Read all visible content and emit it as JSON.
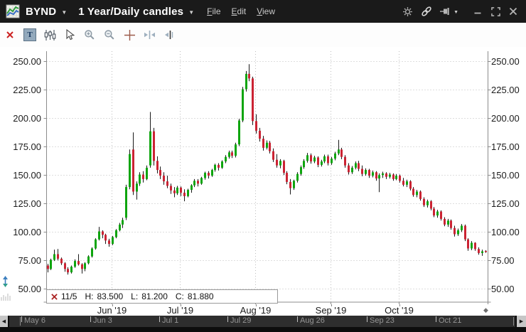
{
  "window": {
    "symbol": "BYND",
    "period": "1 Year/Daily candles",
    "menus": {
      "file": "File",
      "edit": "Edit",
      "view": "View"
    }
  },
  "statusbar": {
    "date": "11/5",
    "h_label": "H:",
    "h_value": "83.500",
    "l_label": "L:",
    "l_value": "81.200",
    "c_label": "C:",
    "c_value": "81.880"
  },
  "toolbar": {
    "text_tool_glyph": "T",
    "tools": [
      "delete",
      "text",
      "chart-style",
      "cursor",
      "zoom-in",
      "zoom-out",
      "crosshair",
      "expand-horizontal",
      "snap-bar"
    ]
  },
  "icons": {
    "chevron-down": "▼",
    "scroll-left": "◀",
    "scroll-right": "▶",
    "axis-end-marker": "◆"
  },
  "chart_data": {
    "type": "candlestick",
    "title": "BYND 1 Year/Daily candles",
    "y_ticks": [
      250,
      225,
      200,
      175,
      150,
      125,
      100,
      75,
      50
    ],
    "ylim": [
      50,
      250
    ],
    "grid": "dashed",
    "months": [
      {
        "label": "Jun '19",
        "index": 19
      },
      {
        "label": "Jul '19",
        "index": 39
      },
      {
        "label": "Aug '19",
        "index": 61
      },
      {
        "label": "Sep '19",
        "index": 83
      },
      {
        "label": "Oct '19",
        "index": 103
      }
    ],
    "scrollbar_dates": [
      {
        "label": "May 6",
        "x": 30
      },
      {
        "label": "Jun 3",
        "x": 127
      },
      {
        "label": "Jul 1",
        "x": 224
      },
      {
        "label": "Jul 29",
        "x": 320
      },
      {
        "label": "Aug 26",
        "x": 418
      },
      {
        "label": "Sep 23",
        "x": 516
      },
      {
        "label": "Oct 21",
        "x": 613
      }
    ],
    "last_quote": {
      "date": "11/5",
      "high": 83.5,
      "low": 81.2,
      "close": 81.88
    },
    "colors": {
      "up": "#0ea50e",
      "down": "#cb2333",
      "wick": "#1a1a1a",
      "grid": "#bdbdbd",
      "axis": "#8c8c8c",
      "accent_red": "#cc2222"
    },
    "candles": [
      [
        70,
        71.5,
        64,
        67
      ],
      [
        67,
        76,
        66,
        75
      ],
      [
        75,
        84,
        74,
        80
      ],
      [
        80,
        84.5,
        74.5,
        76
      ],
      [
        76,
        77,
        70.5,
        72
      ],
      [
        72,
        73,
        64.5,
        67
      ],
      [
        67,
        68.5,
        62,
        64
      ],
      [
        64,
        70,
        63,
        69
      ],
      [
        69,
        75.5,
        68,
        74
      ],
      [
        74,
        80,
        70,
        71
      ],
      [
        71,
        72,
        63,
        67
      ],
      [
        67,
        73,
        65,
        72
      ],
      [
        72,
        79,
        71,
        78
      ],
      [
        78,
        86,
        77,
        85
      ],
      [
        85,
        94,
        84,
        93
      ],
      [
        93,
        104,
        92,
        100
      ],
      [
        100,
        101,
        94,
        97
      ],
      [
        97,
        98,
        89,
        92
      ],
      [
        92,
        93.5,
        86.5,
        89
      ],
      [
        89,
        96,
        88,
        95
      ],
      [
        95,
        102,
        94,
        101
      ],
      [
        101,
        107.5,
        100,
        106
      ],
      [
        106,
        112,
        103,
        110
      ],
      [
        112,
        141,
        110,
        139
      ],
      [
        139,
        172,
        137,
        168
      ],
      [
        172,
        187,
        132,
        135
      ],
      [
        135,
        144,
        128,
        142
      ],
      [
        142,
        152,
        140,
        150
      ],
      [
        150,
        153,
        143,
        146
      ],
      [
        146,
        158,
        145,
        156
      ],
      [
        158,
        205,
        156,
        188
      ],
      [
        188,
        191,
        158,
        162
      ],
      [
        162,
        166,
        151,
        154
      ],
      [
        154,
        157,
        146,
        149
      ],
      [
        149,
        152,
        141,
        144
      ],
      [
        144,
        149,
        138,
        140
      ],
      [
        140,
        142,
        133,
        136
      ],
      [
        136,
        139,
        130,
        133.5
      ],
      [
        133.5,
        140,
        132,
        138.5
      ],
      [
        138.5,
        139.5,
        131,
        134
      ],
      [
        134,
        137,
        126.5,
        131
      ],
      [
        131,
        137.5,
        130,
        136.5
      ],
      [
        136.5,
        141.5,
        134,
        140.5
      ],
      [
        140.5,
        146,
        139,
        144.5
      ],
      [
        144.5,
        146,
        139.5,
        142
      ],
      [
        142,
        148,
        141,
        147
      ],
      [
        147,
        152.5,
        145.5,
        151.5
      ],
      [
        151.5,
        153,
        146.5,
        149
      ],
      [
        149,
        155,
        148,
        154
      ],
      [
        154,
        159.5,
        152.5,
        158.5
      ],
      [
        158.5,
        160,
        153.5,
        156
      ],
      [
        156,
        162.5,
        155,
        161.5
      ],
      [
        161.5,
        167,
        160,
        165.5
      ],
      [
        165.5,
        171,
        164,
        169.5
      ],
      [
        169.5,
        171,
        164.5,
        166.5
      ],
      [
        166.5,
        178,
        165,
        176.5
      ],
      [
        176.5,
        199,
        175,
        197.5
      ],
      [
        197.5,
        227,
        196,
        225
      ],
      [
        225,
        241,
        223,
        238.5
      ],
      [
        238.5,
        247,
        232,
        234.5
      ],
      [
        234.5,
        236,
        193.5,
        197
      ],
      [
        197,
        203,
        186,
        188.5
      ],
      [
        188.5,
        191,
        179,
        181.5
      ],
      [
        181.5,
        184,
        171,
        173.5
      ],
      [
        173.5,
        180,
        172,
        178
      ],
      [
        178,
        179.5,
        168.5,
        170.5
      ],
      [
        170.5,
        173,
        161,
        163
      ],
      [
        163,
        168,
        156,
        158
      ],
      [
        158,
        163.5,
        155.5,
        162
      ],
      [
        162,
        163,
        149.5,
        151.5
      ],
      [
        151.5,
        153,
        141.5,
        143.5
      ],
      [
        143.5,
        146,
        132.5,
        138
      ],
      [
        138,
        145.5,
        136.5,
        144.5
      ],
      [
        144.5,
        152,
        143,
        150.5
      ],
      [
        150.5,
        158,
        149,
        156.5
      ],
      [
        156.5,
        163.5,
        155,
        162
      ],
      [
        162,
        169,
        160.5,
        167
      ],
      [
        167,
        168.5,
        159.5,
        161.5
      ],
      [
        161.5,
        166.5,
        160,
        165
      ],
      [
        165,
        166,
        156.5,
        158.5
      ],
      [
        158.5,
        163,
        157,
        161.5
      ],
      [
        161.5,
        167.5,
        160,
        166
      ],
      [
        166,
        167.5,
        158,
        160
      ],
      [
        160,
        165.5,
        158.5,
        164
      ],
      [
        164,
        170,
        162.5,
        168.5
      ],
      [
        168.5,
        180.5,
        167,
        172
      ],
      [
        172,
        173.5,
        163.5,
        165.5
      ],
      [
        165.5,
        167,
        156,
        158
      ],
      [
        158,
        160,
        150,
        152
      ],
      [
        152,
        157.5,
        150.5,
        156
      ],
      [
        156,
        161.5,
        154.5,
        160
      ],
      [
        160,
        162,
        153,
        155
      ],
      [
        155,
        158,
        148.5,
        150.5
      ],
      [
        150.5,
        155.5,
        149,
        154
      ],
      [
        154,
        155,
        147,
        149
      ],
      [
        149,
        153.5,
        147.5,
        152
      ],
      [
        152,
        153,
        144.5,
        146.5
      ],
      [
        146.5,
        151,
        134.5,
        149.5
      ],
      [
        149.5,
        152.5,
        147,
        151
      ],
      [
        151,
        152,
        146,
        148
      ],
      [
        148,
        151.5,
        146.5,
        150
      ],
      [
        150,
        151,
        144.5,
        146
      ],
      [
        146,
        150.5,
        145,
        149
      ],
      [
        149,
        150,
        143,
        144.5
      ],
      [
        144.5,
        147,
        139.5,
        141
      ],
      [
        141,
        145.5,
        139,
        144
      ],
      [
        144,
        145,
        136,
        137.5
      ],
      [
        137.5,
        139,
        130.5,
        132
      ],
      [
        132,
        136.5,
        130,
        135
      ],
      [
        135,
        136,
        127,
        128.5
      ],
      [
        128.5,
        130,
        121.5,
        123
      ],
      [
        123,
        128,
        121,
        126.5
      ],
      [
        126.5,
        127.5,
        118.5,
        120
      ],
      [
        120,
        121.5,
        112.5,
        114
      ],
      [
        114,
        119,
        112,
        117.5
      ],
      [
        117.5,
        118.5,
        109.5,
        111
      ],
      [
        111,
        112.5,
        104.5,
        106
      ],
      [
        106,
        111,
        104,
        109.5
      ],
      [
        109.5,
        110.5,
        101.5,
        103
      ],
      [
        103,
        105,
        95.5,
        97.5
      ],
      [
        97.5,
        102.5,
        96,
        101
      ],
      [
        101,
        106.5,
        99.5,
        105
      ],
      [
        105,
        106,
        91.5,
        93
      ],
      [
        93,
        94,
        83,
        85
      ],
      [
        85,
        91.5,
        83.5,
        90
      ],
      [
        90,
        90.5,
        83,
        84.5
      ],
      [
        84.5,
        86,
        79.5,
        81
      ],
      [
        81,
        84,
        78.5,
        82.5
      ],
      [
        82.8,
        83.5,
        81.2,
        81.88
      ]
    ]
  }
}
